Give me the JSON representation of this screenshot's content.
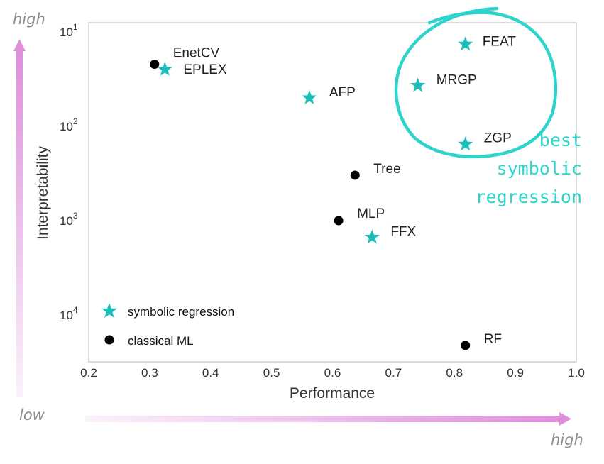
{
  "chart_data": {
    "type": "scatter",
    "xlabel": "Performance",
    "ylabel": "Interpretability",
    "xlim": [
      0.2,
      1.0
    ],
    "ylog": true,
    "ylim_inverted": [
      10,
      20000
    ],
    "xticks": [
      "0.2",
      "0.3",
      "0.4",
      "0.5",
      "0.6",
      "0.7",
      "0.8",
      "0.9",
      "1.0"
    ],
    "yticks": [
      {
        "value": 10,
        "base": "10",
        "exp": "1"
      },
      {
        "value": 100,
        "base": "10",
        "exp": "2"
      },
      {
        "value": 1000,
        "base": "10",
        "exp": "3"
      },
      {
        "value": 10000,
        "base": "10",
        "exp": "4"
      }
    ],
    "grid": false,
    "series": [
      {
        "name": "symbolic regression",
        "marker": "star",
        "color": "#1dbdbb",
        "points": [
          {
            "label": "FEAT",
            "x": 0.818,
            "y": 13.5
          },
          {
            "label": "EPLEX",
            "x": 0.325,
            "y": 25
          },
          {
            "label": "MRGP",
            "x": 0.74,
            "y": 37
          },
          {
            "label": "AFP",
            "x": 0.562,
            "y": 50
          },
          {
            "label": "ZGP",
            "x": 0.818,
            "y": 155
          },
          {
            "label": "FFX",
            "x": 0.665,
            "y": 1500
          }
        ]
      },
      {
        "name": "classical ML",
        "marker": "circle",
        "color": "#000000",
        "points": [
          {
            "label": "EnetCV",
            "x": 0.308,
            "y": 22
          },
          {
            "label": "Tree",
            "x": 0.637,
            "y": 330
          },
          {
            "label": "MLP",
            "x": 0.61,
            "y": 1000
          },
          {
            "label": "RF",
            "x": 0.818,
            "y": 21000
          }
        ]
      }
    ],
    "legend": {
      "position": "bottom-left",
      "entries": [
        "symbolic regression",
        "classical ML"
      ]
    },
    "annotation": {
      "lines": [
        "best",
        "symbolic",
        "regression"
      ],
      "color": "#2ed3cc"
    },
    "corner_labels": {
      "y_high": "high",
      "x_low": "low",
      "x_high": "high"
    },
    "colors": {
      "arrow": "#de8fdc",
      "star": "#1dbdbb",
      "dot": "#000000",
      "frame": "#cfcfcf"
    }
  }
}
